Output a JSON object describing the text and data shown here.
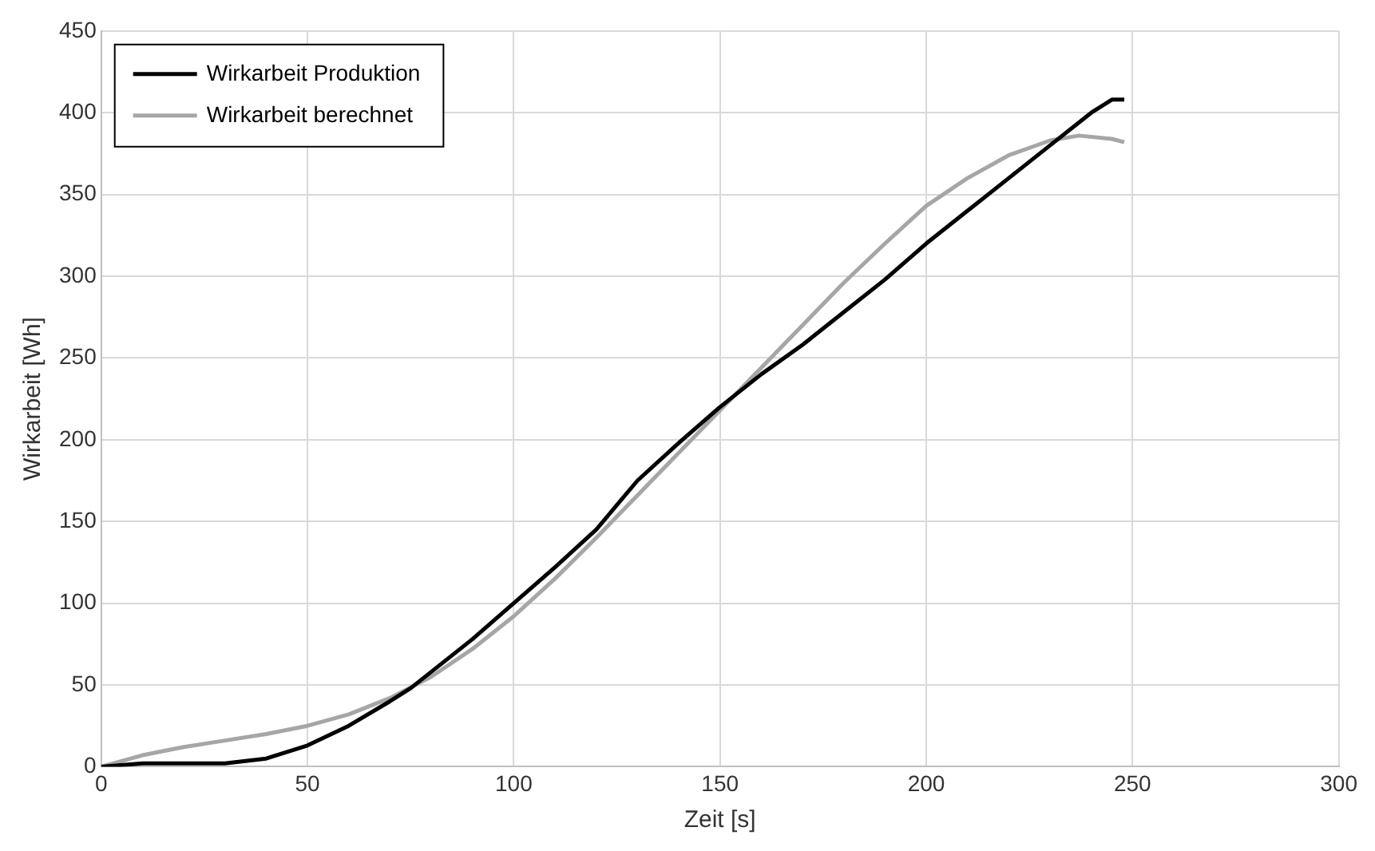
{
  "chart_data": {
    "type": "line",
    "xlabel": "Zeit [s]",
    "ylabel": "Wirkarbeit [Wh]",
    "xlim": [
      0,
      300
    ],
    "xticks": [
      0,
      50,
      100,
      150,
      200,
      250,
      300
    ],
    "ylim": [
      0,
      450
    ],
    "yticks": [
      0,
      50,
      100,
      150,
      200,
      250,
      300,
      350,
      400,
      450
    ],
    "grid": true,
    "legend": "top left",
    "marker": "none",
    "line_style": "solid",
    "series": [
      {
        "name": "Wirkarbeit Produktion",
        "color": "#000000",
        "x": [
          0,
          10,
          20,
          30,
          40,
          50,
          60,
          70,
          75,
          80,
          90,
          100,
          110,
          120,
          125,
          130,
          140,
          150,
          160,
          170,
          180,
          190,
          200,
          210,
          220,
          230,
          240,
          245,
          248
        ],
        "values": [
          0,
          2,
          2,
          2,
          5,
          13,
          25,
          40,
          48,
          58,
          78,
          100,
          122,
          145,
          160,
          175,
          198,
          220,
          240,
          258,
          278,
          298,
          320,
          340,
          360,
          380,
          400,
          408,
          408
        ]
      },
      {
        "name": "Wirkarbeit berechnet",
        "color": "#a6a6a6",
        "x": [
          0,
          10,
          20,
          30,
          40,
          50,
          60,
          70,
          80,
          90,
          100,
          110,
          120,
          130,
          140,
          150,
          160,
          170,
          180,
          190,
          200,
          210,
          220,
          230,
          237,
          245,
          248
        ],
        "values": [
          0,
          7,
          12,
          16,
          20,
          25,
          32,
          42,
          55,
          72,
          92,
          115,
          140,
          166,
          192,
          218,
          244,
          270,
          296,
          320,
          343,
          360,
          374,
          383,
          386,
          384,
          382
        ]
      }
    ]
  }
}
